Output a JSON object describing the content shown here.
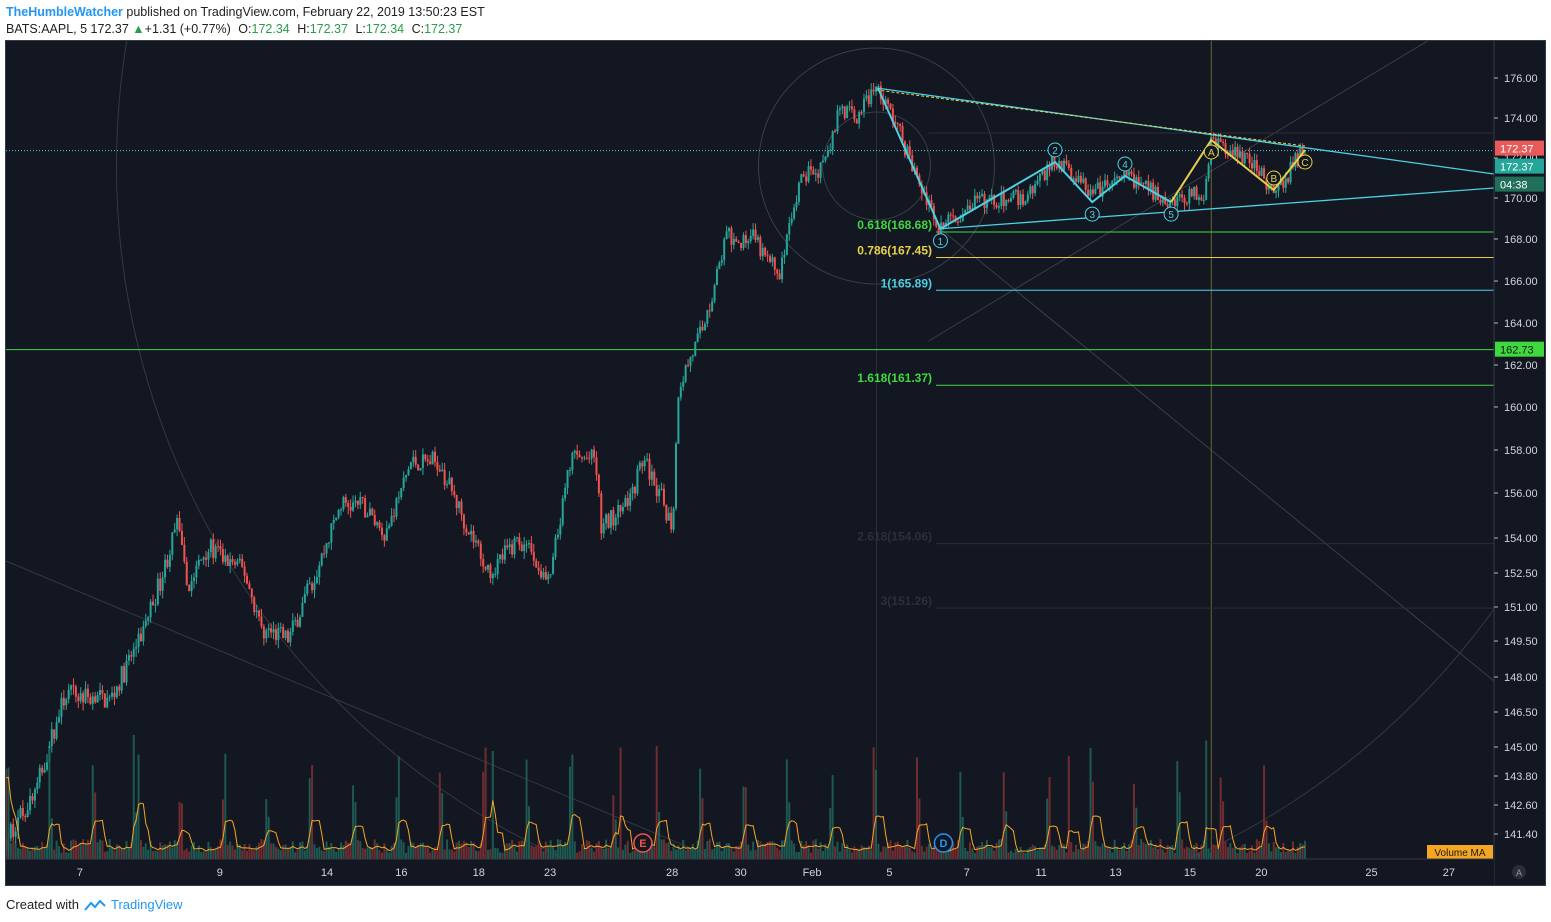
{
  "header": {
    "author": "TheHumbleWatcher",
    "published_text": "published on TradingView.com, February 22, 2019 13:50:23 EST",
    "symbol": "BATS:AAPL, 5",
    "last": "172.37",
    "change": "+1.31 (+0.77%)",
    "o_label": "O:",
    "o": "172.34",
    "h_label": "H:",
    "h": "172.37",
    "l_label": "L:",
    "l": "172.34",
    "c_label": "C:",
    "c": "172.37"
  },
  "footer": {
    "created_with": "Created with",
    "brand": "TradingView"
  },
  "colors": {
    "background": "#131722",
    "up": "#26a69a",
    "down": "#ef5350",
    "cyan": "#4dd0e1",
    "yellow": "#e6d04a",
    "green": "#3fd83f",
    "volume_ma": "#f5a623",
    "white_line": "#d0d0d0"
  },
  "chart_data": {
    "type": "candlestick",
    "symbol": "BATS:AAPL",
    "interval": "5",
    "y_axis": {
      "range": [
        140.5,
        177.0
      ],
      "ticks": [
        "176.00",
        "174.00",
        "172.00",
        "170.00",
        "168.00",
        "166.00",
        "164.00",
        "162.00",
        "160.00",
        "158.00",
        "156.00",
        "154.00",
        "152.50",
        "151.00",
        "149.50",
        "148.00",
        "146.50",
        "145.00",
        "143.80",
        "142.60",
        "141.40"
      ],
      "tick_values": [
        176,
        174,
        172,
        170,
        168,
        166,
        164,
        162,
        160,
        158,
        156,
        154,
        152.5,
        151,
        149.5,
        148,
        146.5,
        145,
        143.8,
        142.6,
        141.4
      ]
    },
    "x_axis": {
      "labels": [
        "7",
        "9",
        "14",
        "16",
        "18",
        "23",
        "28",
        "30",
        "Feb",
        "5",
        "7",
        "11",
        "13",
        "15",
        "20",
        "25",
        "27"
      ],
      "label_positions": [
        0.004,
        0.098,
        0.17,
        0.22,
        0.272,
        0.32,
        0.402,
        0.448,
        0.496,
        0.548,
        0.6,
        0.65,
        0.7,
        0.75,
        0.798,
        0.872,
        0.924
      ]
    },
    "price_path": [
      [
        0.0,
        141.2
      ],
      [
        0.02,
        143.2
      ],
      [
        0.04,
        147.3
      ],
      [
        0.07,
        147.0
      ],
      [
        0.09,
        149.6
      ],
      [
        0.105,
        152.4
      ],
      [
        0.115,
        154.6
      ],
      [
        0.122,
        151.8
      ],
      [
        0.135,
        153.6
      ],
      [
        0.16,
        152.6
      ],
      [
        0.172,
        150.0
      ],
      [
        0.19,
        149.6
      ],
      [
        0.21,
        152.8
      ],
      [
        0.225,
        155.5
      ],
      [
        0.24,
        155.4
      ],
      [
        0.255,
        154.2
      ],
      [
        0.272,
        157.4
      ],
      [
        0.29,
        157.5
      ],
      [
        0.31,
        154.5
      ],
      [
        0.325,
        152.6
      ],
      [
        0.345,
        154.0
      ],
      [
        0.365,
        152.0
      ],
      [
        0.38,
        157.6
      ],
      [
        0.396,
        157.6
      ],
      [
        0.4,
        154.4
      ],
      [
        0.42,
        155.8
      ],
      [
        0.428,
        157.6
      ],
      [
        0.438,
        156.2
      ],
      [
        0.448,
        154.5
      ],
      [
        0.452,
        161.0
      ],
      [
        0.47,
        164.0
      ],
      [
        0.485,
        168.4
      ],
      [
        0.49,
        167.4
      ],
      [
        0.5,
        168.3
      ],
      [
        0.51,
        167.1
      ],
      [
        0.52,
        166.4
      ],
      [
        0.535,
        171.0
      ],
      [
        0.55,
        171.5
      ],
      [
        0.56,
        174.6
      ],
      [
        0.57,
        174.0
      ],
      [
        0.585,
        175.5
      ],
      [
        0.598,
        173.8
      ],
      [
        0.615,
        170.4
      ],
      [
        0.628,
        168.5
      ],
      [
        0.65,
        169.8
      ],
      [
        0.685,
        170.0
      ],
      [
        0.705,
        172.0
      ],
      [
        0.73,
        170.2
      ],
      [
        0.755,
        171.1
      ],
      [
        0.78,
        169.9
      ],
      [
        0.805,
        170.3
      ],
      [
        0.81,
        172.9
      ],
      [
        0.835,
        171.8
      ],
      [
        0.855,
        170.2
      ],
      [
        0.865,
        171.7
      ],
      [
        0.873,
        172.37
      ]
    ],
    "volume_ma_peaks": 30,
    "horizontal_levels": [
      {
        "price": 172.37,
        "label": "172.37",
        "label_color": "#ef5350",
        "style": "dotted"
      },
      {
        "price": 162.73,
        "label": "162.73",
        "label_color": "#3fd83f",
        "style": "solid"
      }
    ],
    "fibonacci": [
      {
        "ratio_label": "0.618(168.68)",
        "price": 168.68,
        "color": "#3fd83f"
      },
      {
        "ratio_label": "0.786(167.45)",
        "price": 167.45,
        "color": "#e6d04a"
      },
      {
        "ratio_label": "1(165.89)",
        "price": 165.89,
        "color": "#4dd0e1"
      },
      {
        "ratio_label": "1.618(161.37)",
        "price": 161.37,
        "color": "#3fd83f"
      },
      {
        "ratio_label": "2.618(154.06)",
        "price": 154.06,
        "color": "#1e222d"
      },
      {
        "ratio_label": "3(151.26)",
        "price": 151.26,
        "color": "#1e222d"
      }
    ],
    "axis_badges": {
      "price": "172.37",
      "countdown": "04:38",
      "last_green": "172.37"
    },
    "cyan_wave": [
      {
        "label": "",
        "x": 0.586,
        "price": 175.5
      },
      {
        "label": "1",
        "x": 0.628,
        "price": 168.5
      },
      {
        "label": "2",
        "x": 0.705,
        "price": 171.8
      },
      {
        "label": "3",
        "x": 0.73,
        "price": 169.8
      },
      {
        "label": "4",
        "x": 0.752,
        "price": 171.1
      },
      {
        "label": "5",
        "x": 0.783,
        "price": 169.8
      }
    ],
    "yellow_wave": [
      {
        "label": "",
        "x": 0.783,
        "price": 169.8
      },
      {
        "label": "A",
        "x": 0.81,
        "price": 172.9
      },
      {
        "label": "B",
        "x": 0.852,
        "price": 170.4
      },
      {
        "label": "C",
        "x": 0.873,
        "price": 172.4
      }
    ],
    "events": [
      {
        "label": "E",
        "x": 0.428,
        "color": "#ef5350"
      },
      {
        "label": "D",
        "x": 0.63,
        "color": "#2196f3"
      }
    ],
    "volume_label": "Volume MA",
    "axis_corner": "A"
  }
}
